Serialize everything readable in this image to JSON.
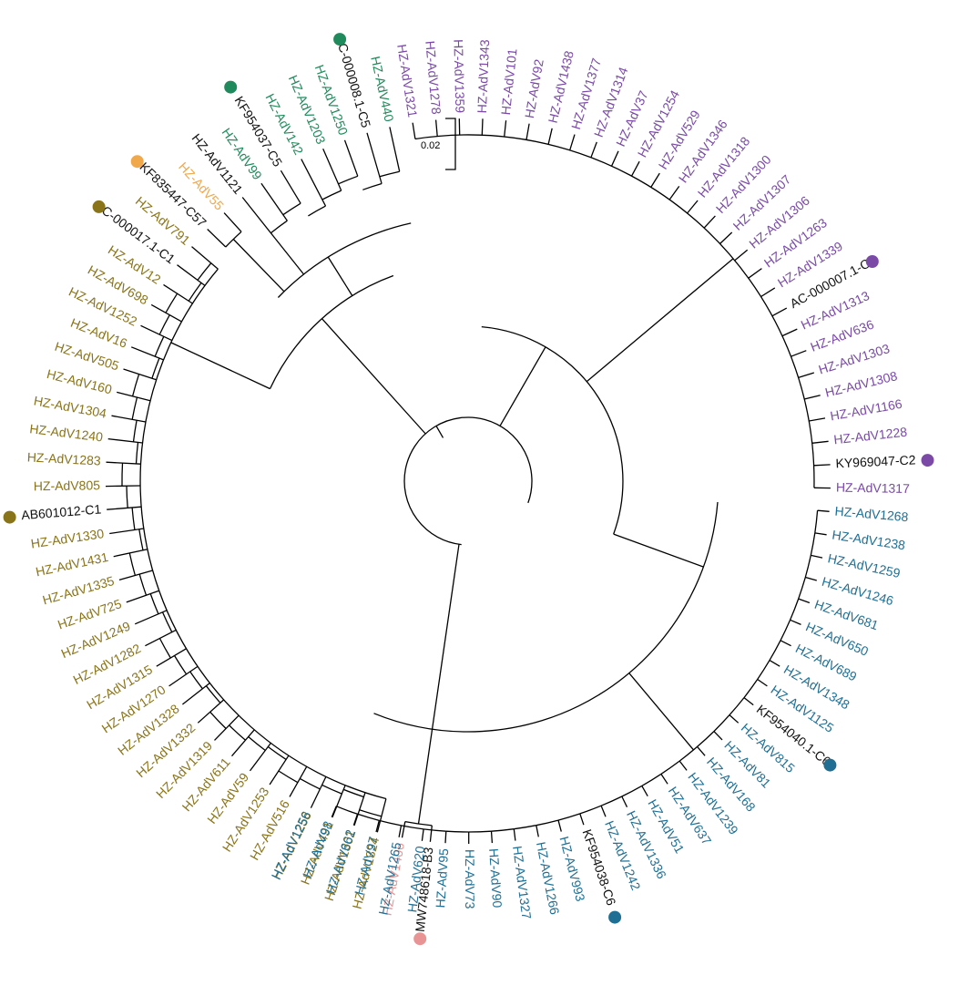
{
  "scale_bar": {
    "label": "0.02"
  },
  "clade_colors": {
    "blue": "#1f6f94",
    "olive": "#8a7419",
    "purple": "#7a4aa6",
    "green": "#1f8a5b",
    "pink": "#e89494",
    "orange": "#f0a84a",
    "black": "#111111"
  },
  "leaves": [
    {
      "label": "MW748618-B3",
      "angle": -84,
      "color": "black",
      "marker": "pink"
    },
    {
      "label": "HZ-AdV1406",
      "angle": -79.5,
      "color": "pink"
    },
    {
      "label": "HZ-AdV1324",
      "angle": -75.5,
      "color": "olive"
    },
    {
      "label": "HZ-AdV1301",
      "angle": -71.7,
      "color": "olive"
    },
    {
      "label": "HZ-AdV491",
      "angle": -68,
      "color": "olive"
    },
    {
      "label": "HZ-AdV1258",
      "angle": -64.3,
      "color": "olive"
    },
    {
      "label": "HZ-AdV516",
      "angle": -60.5,
      "color": "olive"
    },
    {
      "label": "HZ-AdV1253",
      "angle": -56.8,
      "color": "olive"
    },
    {
      "label": "HZ-AdV59",
      "angle": -53,
      "color": "olive"
    },
    {
      "label": "HZ-AdV611",
      "angle": -49.3,
      "color": "olive"
    },
    {
      "label": "HZ-AdV1319",
      "angle": -45.6,
      "color": "olive"
    },
    {
      "label": "HZ-AdV1332",
      "angle": -41.8,
      "color": "olive"
    },
    {
      "label": "HZ-AdV1328",
      "angle": -38,
      "color": "olive"
    },
    {
      "label": "HZ-AdV1270",
      "angle": -34.4,
      "color": "olive"
    },
    {
      "label": "HZ-AdV1315",
      "angle": -30.7,
      "color": "olive"
    },
    {
      "label": "HZ-AdV1282",
      "angle": -27,
      "color": "olive"
    },
    {
      "label": "HZ-AdV1249",
      "angle": -23.2,
      "color": "olive"
    },
    {
      "label": "HZ-AdV725",
      "angle": -19.5,
      "color": "olive"
    },
    {
      "label": "HZ-AdV1335",
      "angle": -15.8,
      "color": "olive"
    },
    {
      "label": "HZ-AdV1431",
      "angle": -12,
      "color": "olive"
    },
    {
      "label": "HZ-AdV1330",
      "angle": -8.3,
      "color": "olive"
    },
    {
      "label": "AB601012-C1",
      "angle": -4.5,
      "color": "black",
      "marker": "olive"
    },
    {
      "label": "HZ-AdV805",
      "angle": -0.8,
      "color": "olive"
    },
    {
      "label": "HZ-AdV1283",
      "angle": 3,
      "color": "olive"
    },
    {
      "label": "HZ-AdV1240",
      "angle": 6.7,
      "color": "olive"
    },
    {
      "label": "HZ-AdV1304",
      "angle": 10.4,
      "color": "olive"
    },
    {
      "label": "HZ-AdV160",
      "angle": 14.2,
      "color": "olive"
    },
    {
      "label": "HZ-AdV505",
      "angle": 18,
      "color": "olive"
    },
    {
      "label": "HZ-AdV16",
      "angle": 21.7,
      "color": "olive"
    },
    {
      "label": "HZ-AdV1252",
      "angle": 25.4,
      "color": "olive"
    },
    {
      "label": "HZ-AdV698",
      "angle": 29.1,
      "color": "olive"
    },
    {
      "label": "HZ-AdV12",
      "angle": 32.8,
      "color": "olive"
    },
    {
      "label": "AC-000017.1-C1",
      "angle": 36.6,
      "color": "black",
      "marker": "olive"
    },
    {
      "label": "HZ-AdV791",
      "angle": 40.3,
      "color": "olive"
    },
    {
      "label": "KF835447-C57",
      "angle": 44,
      "color": "black",
      "marker": "orange"
    },
    {
      "label": "HZ-AdV55",
      "angle": 47.7,
      "color": "orange"
    },
    {
      "label": "HZ-AdV1121",
      "angle": 51.5,
      "color": "black"
    },
    {
      "label": "HZ-AdV99",
      "angle": 55.2,
      "color": "green"
    },
    {
      "label": "KF954037-C5",
      "angle": 58.9,
      "color": "black",
      "marker": "green"
    },
    {
      "label": "HZ-AdV142",
      "angle": 62.6,
      "color": "green"
    },
    {
      "label": "HZ-AdV1203",
      "angle": 66.4,
      "color": "green"
    },
    {
      "label": "HZ-AdV1250",
      "angle": 70.1,
      "color": "green"
    },
    {
      "label": "AC-000008.1-C5",
      "angle": 73.8,
      "color": "black",
      "marker": "green"
    },
    {
      "label": "HZ-AdV440",
      "angle": 77.5,
      "color": "green"
    },
    {
      "label": "HZ-AdV1321",
      "angle": 81.2,
      "color": "purple"
    },
    {
      "label": "HZ-AdV1278",
      "angle": 84.9,
      "color": "purple"
    },
    {
      "label": "HZ-AdV1359",
      "angle": 88.6,
      "color": "purple"
    },
    {
      "label": "HZ-AdV1343",
      "angle": 92.3,
      "color": "purple"
    },
    {
      "label": "HZ-AdV101",
      "angle": 96,
      "color": "purple"
    },
    {
      "label": "HZ-AdV92",
      "angle": 99.7,
      "color": "purple"
    },
    {
      "label": "HZ-AdV1438",
      "angle": 103.4,
      "color": "purple"
    },
    {
      "label": "HZ-AdV1377",
      "angle": 107.1,
      "color": "purple"
    },
    {
      "label": "HZ-AdV1314",
      "angle": 110.8,
      "color": "purple"
    },
    {
      "label": "HZ-AdV37",
      "angle": 114.5,
      "color": "purple"
    },
    {
      "label": "HZ-AdV1254",
      "angle": 118.2,
      "color": "purple"
    },
    {
      "label": "HZ-AdV529",
      "angle": 121.9,
      "color": "purple"
    },
    {
      "label": "HZ-AdV1346",
      "angle": 125.6,
      "color": "purple"
    },
    {
      "label": "HZ-AdV1318",
      "angle": 129.3,
      "color": "purple"
    },
    {
      "label": "HZ-AdV1300",
      "angle": 133,
      "color": "purple"
    },
    {
      "label": "HZ-AdV1307",
      "angle": 136.7,
      "color": "purple"
    },
    {
      "label": "HZ-AdV1306",
      "angle": 140.4,
      "color": "purple"
    },
    {
      "label": "HZ-AdV1263",
      "angle": 144.1,
      "color": "purple"
    },
    {
      "label": "HZ-AdV1339",
      "angle": 147.8,
      "color": "purple"
    },
    {
      "label": "AC-000007.1-C2",
      "angle": 151.5,
      "color": "black",
      "marker": "purple"
    },
    {
      "label": "HZ-AdV1313",
      "angle": 155.2,
      "color": "purple"
    },
    {
      "label": "HZ-AdV636",
      "angle": 158.9,
      "color": "purple"
    },
    {
      "label": "HZ-AdV1303",
      "angle": 162.6,
      "color": "purple"
    },
    {
      "label": "HZ-AdV1308",
      "angle": 166.3,
      "color": "purple"
    },
    {
      "label": "HZ-AdV1166",
      "angle": 170,
      "color": "purple"
    },
    {
      "label": "HZ-AdV1228",
      "angle": 173.7,
      "color": "purple"
    },
    {
      "label": "KY969047-C2",
      "angle": 177.4,
      "color": "black",
      "marker": "purple"
    },
    {
      "label": "HZ-AdV1317",
      "angle": 181.1,
      "color": "purple"
    },
    {
      "label": "HZ-AdV1268",
      "angle": 184.8,
      "color": "blue"
    },
    {
      "label": "HZ-AdV1238",
      "angle": 188.5,
      "color": "blue"
    },
    {
      "label": "HZ-AdV1259",
      "angle": 192.2,
      "color": "blue"
    },
    {
      "label": "HZ-AdV1246",
      "angle": 195.9,
      "color": "blue"
    },
    {
      "label": "HZ-AdV681",
      "angle": 199.6,
      "color": "blue"
    },
    {
      "label": "HZ-AdV650",
      "angle": 203.3,
      "color": "blue"
    },
    {
      "label": "HZ-AdV689",
      "angle": 207,
      "color": "blue"
    },
    {
      "label": "HZ-AdV1348",
      "angle": 210.7,
      "color": "blue"
    },
    {
      "label": "HZ-AdV1125",
      "angle": 214.4,
      "color": "blue"
    },
    {
      "label": "KF954040.1-C6",
      "angle": 218.1,
      "color": "black",
      "marker": "blue"
    },
    {
      "label": "HZ-AdV815",
      "angle": 221.8,
      "color": "blue"
    },
    {
      "label": "HZ-AdV81",
      "angle": 225.5,
      "color": "blue"
    },
    {
      "label": "HZ-AdV168",
      "angle": 229.2,
      "color": "blue"
    },
    {
      "label": "HZ-AdV1239",
      "angle": 232.9,
      "color": "blue"
    },
    {
      "label": "HZ-AdV637",
      "angle": 236.6,
      "color": "blue"
    },
    {
      "label": "HZ-AdV51",
      "angle": 240.3,
      "color": "blue"
    },
    {
      "label": "HZ-AdV1336",
      "angle": 244,
      "color": "blue"
    },
    {
      "label": "HZ-AdV1242",
      "angle": 247.7,
      "color": "blue"
    },
    {
      "label": "KF954038-C6",
      "angle": 251.4,
      "color": "black",
      "marker": "blue"
    },
    {
      "label": "HZ-AdV993",
      "angle": 255.1,
      "color": "blue"
    },
    {
      "label": "HZ-AdV1266",
      "angle": 258.8,
      "color": "blue"
    },
    {
      "label": "HZ-AdV1327",
      "angle": 262.5,
      "color": "blue"
    },
    {
      "label": "HZ-AdV90",
      "angle": 266.2,
      "color": "blue"
    },
    {
      "label": "HZ-AdV73",
      "angle": 269.9,
      "color": "blue"
    },
    {
      "label": "HZ-AdV95",
      "angle": 273.6,
      "color": "blue"
    },
    {
      "label": "HZ-AdV620",
      "angle": 277.3,
      "color": "blue"
    },
    {
      "label": "HZ-AdV1265",
      "angle": 281,
      "color": "blue"
    },
    {
      "label": "HZ-AdV97",
      "angle": 284.7,
      "color": "blue"
    },
    {
      "label": "HZ-AdV662",
      "angle": 288.4,
      "color": "blue"
    },
    {
      "label": "HZ-AdV98",
      "angle": 292.1,
      "color": "blue"
    },
    {
      "label": "HZ-AdV1256",
      "angle": 295.8,
      "color": "blue"
    }
  ]
}
